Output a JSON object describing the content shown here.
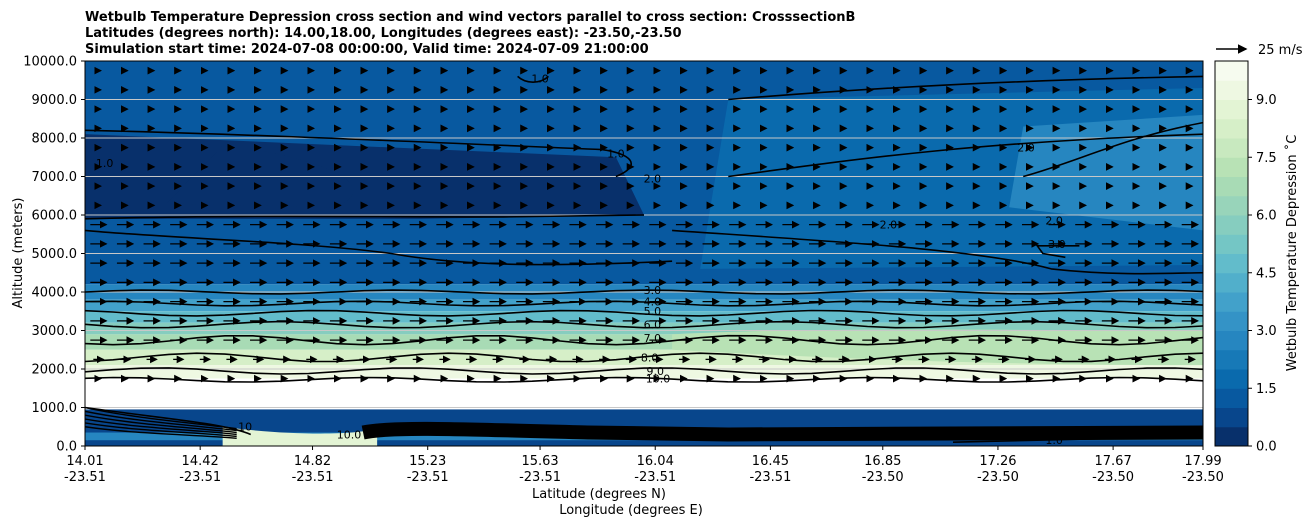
{
  "chart_data": {
    "type": "heatmap",
    "title_lines": [
      "Wetbulb Temperature Depression cross section and wind vectors parallel to cross section: CrosssectionB",
      "Latitudes (degrees north): 14.00,18.00, Longitudes (degrees east): -23.50,-23.50",
      "Simulation start time: 2024-07-08 00:00:00, Valid time: 2024-07-09 21:00:00"
    ],
    "ylabel": "Altitude (meters)",
    "xlabel_lines": [
      "Latitude (degrees N)",
      "Longitude (degrees E)"
    ],
    "ylim": [
      0,
      10000
    ],
    "yticks": [
      "0.0",
      "1000.0",
      "2000.0",
      "3000.0",
      "4000.0",
      "5000.0",
      "6000.0",
      "7000.0",
      "8000.0",
      "9000.0",
      "10000.0"
    ],
    "xticks": [
      {
        "lat": "14.01",
        "lon": "-23.51"
      },
      {
        "lat": "14.42",
        "lon": "-23.51"
      },
      {
        "lat": "14.82",
        "lon": "-23.51"
      },
      {
        "lat": "15.23",
        "lon": "-23.51"
      },
      {
        "lat": "15.63",
        "lon": "-23.51"
      },
      {
        "lat": "16.04",
        "lon": "-23.51"
      },
      {
        "lat": "16.45",
        "lon": "-23.51"
      },
      {
        "lat": "16.85",
        "lon": "-23.50"
      },
      {
        "lat": "17.26",
        "lon": "-23.50"
      },
      {
        "lat": "17.67",
        "lon": "-23.50"
      },
      {
        "lat": "17.99",
        "lon": "-23.50"
      }
    ],
    "grid": "horizontal",
    "colorbar": {
      "label": "Wetbulb Temperature Depression $^\\circ$C",
      "label_text": "Wetbulb Temperature Depression ˚C",
      "range": [
        0.0,
        10.0
      ],
      "ticks": [
        "0.0",
        "1.5",
        "3.0",
        "4.5",
        "6.0",
        "7.5",
        "9.0"
      ],
      "colors": [
        "#08306b",
        "#08468c",
        "#0859a0",
        "#0a6aad",
        "#1779b7",
        "#2686c0",
        "#3493c6",
        "#42a1ca",
        "#51afcb",
        "#62bccb",
        "#74c6c5",
        "#86cdbf",
        "#98d4ba",
        "#a8dbb5",
        "#b8e2b5",
        "#c8e9bf",
        "#d6efc8",
        "#e3f4d4",
        "#eef8e2",
        "#f6fbef"
      ]
    },
    "quiver_key": {
      "label": "25 m/s",
      "value": 25
    },
    "contour_labels": [
      {
        "text": "1.0",
        "x_lat": 15.63,
        "alt": 9500
      },
      {
        "text": "1.0",
        "x_lat": 14.08,
        "alt": 7300
      },
      {
        "text": "1.0",
        "x_lat": 15.9,
        "alt": 7550
      },
      {
        "text": "2.0",
        "x_lat": 16.03,
        "alt": 6900
      },
      {
        "text": "2.0",
        "x_lat": 16.87,
        "alt": 5700
      },
      {
        "text": "2.0",
        "x_lat": 17.46,
        "alt": 5800
      },
      {
        "text": "3.0",
        "x_lat": 17.47,
        "alt": 5200
      },
      {
        "text": "2.0",
        "x_lat": 17.36,
        "alt": 7700
      },
      {
        "text": "3.0",
        "x_lat": 16.03,
        "alt": 4000
      },
      {
        "text": "4.0",
        "x_lat": 16.03,
        "alt": 3700
      },
      {
        "text": "5.0",
        "x_lat": 16.03,
        "alt": 3450
      },
      {
        "text": "6.0",
        "x_lat": 16.03,
        "alt": 3100
      },
      {
        "text": "7.0",
        "x_lat": 16.03,
        "alt": 2750
      },
      {
        "text": "8.0",
        "x_lat": 16.02,
        "alt": 2250
      },
      {
        "text": "9.0",
        "x_lat": 16.04,
        "alt": 1900
      },
      {
        "text": "10.0",
        "x_lat": 16.05,
        "alt": 1700
      },
      {
        "text": "10.0",
        "x_lat": 16.0,
        "alt": 350
      },
      {
        "text": "10.0",
        "x_lat": 14.95,
        "alt": 250
      },
      {
        "text": "10",
        "x_lat": 14.58,
        "alt": 450
      },
      {
        "text": "1.0",
        "x_lat": 17.46,
        "alt": 100
      }
    ]
  }
}
